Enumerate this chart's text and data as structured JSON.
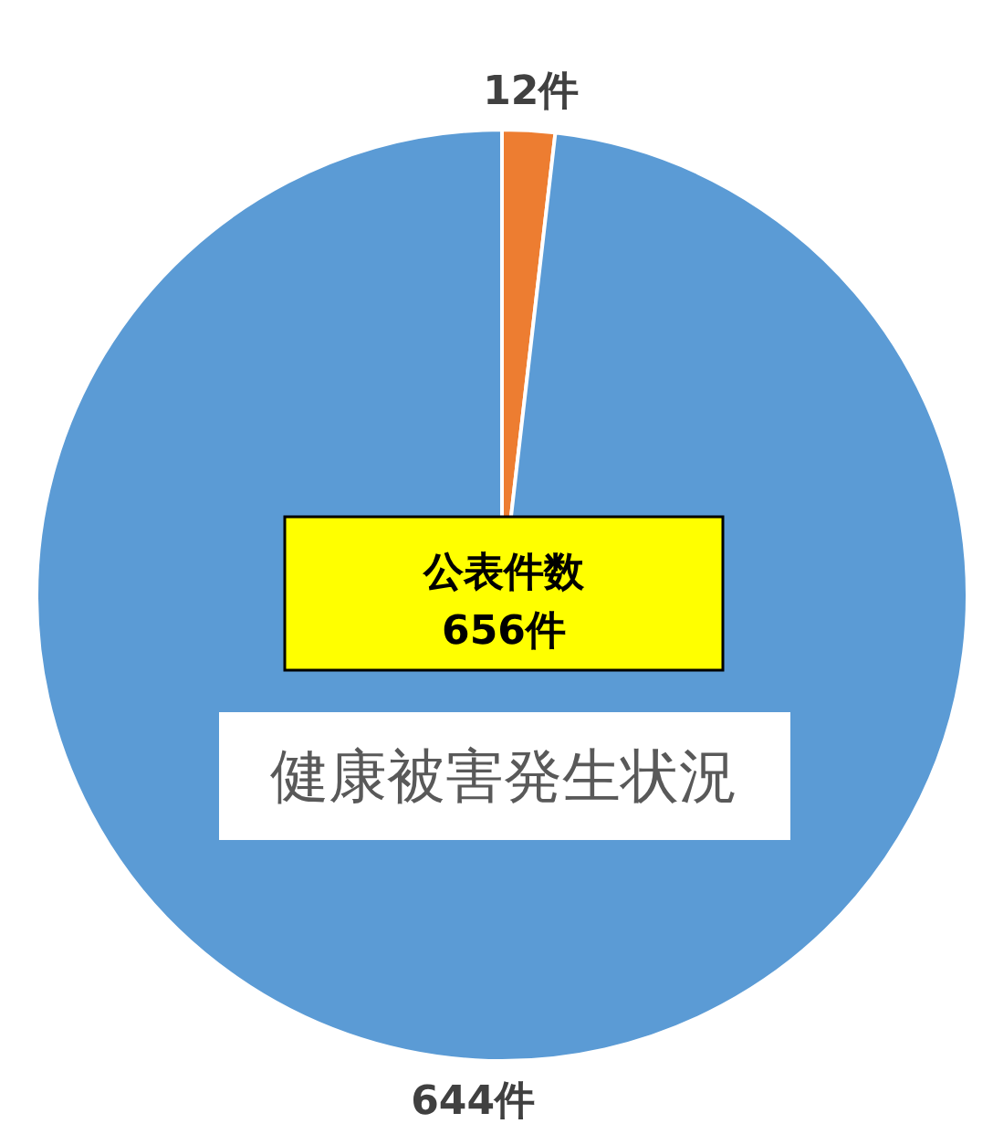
{
  "chart_data": {
    "type": "pie",
    "title": "健康被害発生状況",
    "annotations": [
      "公表件数",
      "656件"
    ],
    "categories": [
      null,
      null
    ],
    "values": [
      12,
      644
    ],
    "colors": [
      "#ed7d31",
      "#5b9bd5"
    ],
    "value_labels": [
      "12件",
      "644件"
    ]
  }
}
